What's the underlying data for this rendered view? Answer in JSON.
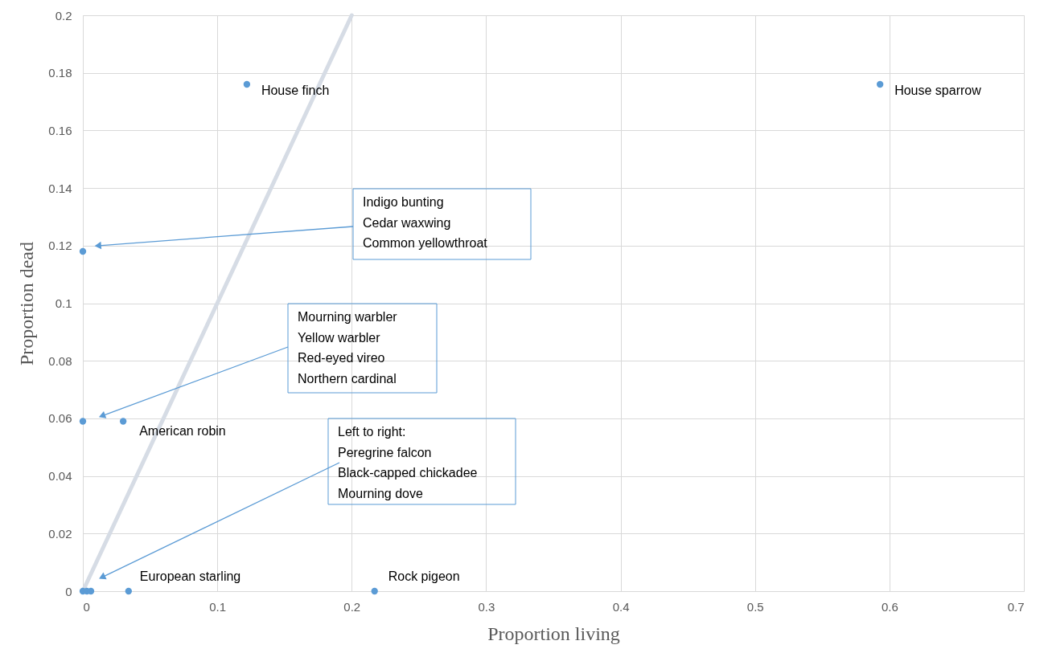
{
  "chart_data": {
    "type": "scatter",
    "xlabel": "Proportion living",
    "ylabel": "Proportion dead",
    "xlim": [
      0,
      0.7
    ],
    "xticks": [
      0,
      0.1,
      0.2,
      0.3,
      0.4,
      0.5,
      0.6,
      0.7
    ],
    "line_style": "solid",
    "ylim": [
      0,
      0.2
    ],
    "yticks": [
      0,
      0.02,
      0.04,
      0.06,
      0.08,
      0.1,
      0.12,
      0.14,
      0.16,
      0.18,
      0.2
    ],
    "grid": true,
    "marker": "circle",
    "series": [
      {
        "color": "#5b9bd5",
        "x": [
          0.122,
          0.593,
          0,
          0,
          0.03,
          0,
          0.003,
          0.006,
          0.034,
          0.217
        ],
        "values": [
          0.176,
          0.176,
          0.118,
          0.059,
          0.059,
          0,
          0,
          0,
          0,
          0
        ]
      },
      {
        "type": "line",
        "marker": "none",
        "color": "#d6dce5",
        "x": [
          0,
          0.2
        ],
        "values": [
          0,
          0.2
        ]
      }
    ],
    "annotations": [
      {
        "text": "House finch",
        "x": 0.122,
        "y": 0.176
      },
      {
        "text": "House sparrow",
        "x": 0.593,
        "y": 0.176
      },
      {
        "text": "American robin",
        "x": 0.03,
        "y": 0.059
      },
      {
        "text": "European starling",
        "x": 0.034,
        "y": 0
      },
      {
        "text": "Rock pigeon",
        "x": 0.217,
        "y": 0
      },
      {
        "text": "Indigo bunting\nCedar waxwing\nCommon yellowthroat",
        "x": 0.012,
        "y": 0.12
      },
      {
        "text": "Mourning warbler\nYellow warbler\nRed-eyed vireo\nNorthern cardinal",
        "x": 0.015,
        "y": 0.061
      },
      {
        "text": "Left to right:\nPeregrine falcon\nBlack-capped chickadee\nMourning dove",
        "x": 0.015,
        "y": 0.005
      }
    ]
  }
}
